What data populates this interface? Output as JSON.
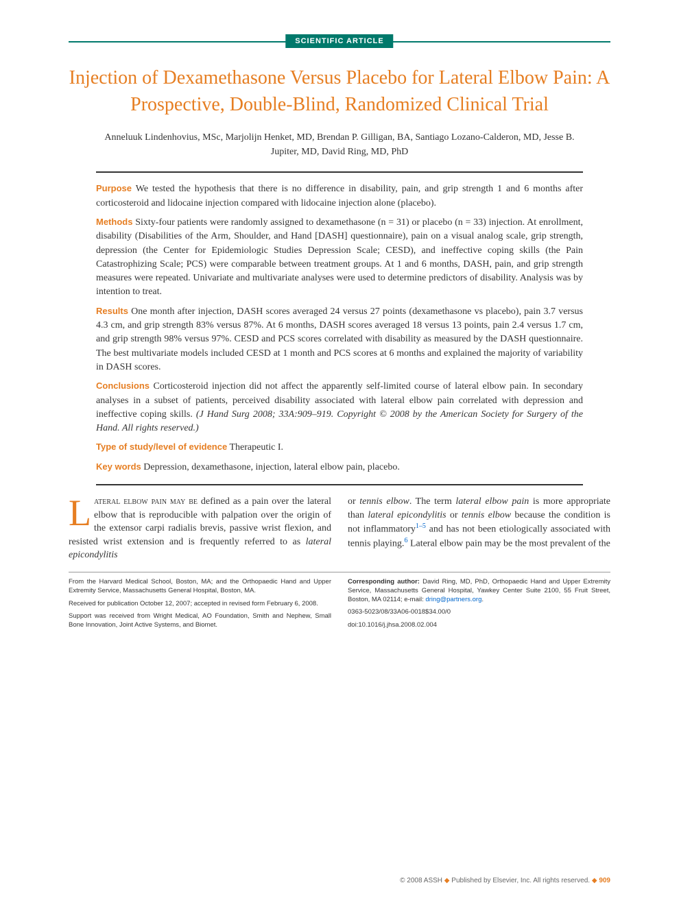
{
  "badge": "SCIENTIFIC ARTICLE",
  "title": "Injection of Dexamethasone Versus Placebo for Lateral Elbow Pain: A Prospective, Double-Blind, Randomized Clinical Trial",
  "authors": "Anneluuk Lindenhovius, MSc, Marjolijn Henket, MD, Brendan P. Gilligan, BA, Santiago Lozano-Calderon, MD, Jesse B. Jupiter, MD, David Ring, MD, PhD",
  "abstract": {
    "purpose_label": "Purpose",
    "purpose": " We tested the hypothesis that there is no difference in disability, pain, and grip strength 1 and 6 months after corticosteroid and lidocaine injection compared with lidocaine injection alone (placebo).",
    "methods_label": "Methods",
    "methods": " Sixty-four patients were randomly assigned to dexamethasone (n = 31) or placebo (n = 33) injection. At enrollment, disability (Disabilities of the Arm, Shoulder, and Hand [DASH] questionnaire), pain on a visual analog scale, grip strength, depression (the Center for Epidemiologic Studies Depression Scale; CESD), and ineffective coping skills (the Pain Catastrophizing Scale; PCS) were comparable between treatment groups. At 1 and 6 months, DASH, pain, and grip strength measures were repeated. Univariate and multivariate analyses were used to determine predictors of disability. Analysis was by intention to treat.",
    "results_label": "Results",
    "results": " One month after injection, DASH scores averaged 24 versus 27 points (dexamethasone vs placebo), pain 3.7 versus 4.3 cm, and grip strength 83% versus 87%. At 6 months, DASH scores averaged 18 versus 13 points, pain 2.4 versus 1.7 cm, and grip strength 98% versus 97%. CESD and PCS scores correlated with disability as measured by the DASH questionnaire. The best multivariate models included CESD at 1 month and PCS scores at 6 months and explained the majority of variability in DASH scores.",
    "conclusions_label": "Conclusions",
    "conclusions": " Corticosteroid injection did not affect the apparently self-limited course of lateral elbow pain. In secondary analyses in a subset of patients, perceived disability associated with lateral elbow pain correlated with depression and ineffective coping skills. ",
    "citation": "(J Hand Surg 2008; 33A:909–919. Copyright © 2008 by the American Society for Surgery of the Hand. All rights reserved.)",
    "type_label": "Type of study/level of evidence",
    "type": " Therapeutic I.",
    "keywords_label": "Key words",
    "keywords": " Depression, dexamethasone, injection, lateral elbow pain, placebo."
  },
  "body": {
    "col1_dropcap": "L",
    "col1_lead": "ateral elbow pain may be",
    "col1_rest": " defined as a pain over the lateral elbow that is reproducible with palpation over the origin of the extensor carpi radialis brevis, passive wrist flexion, and resisted wrist extension and is frequently referred to as ",
    "col1_ital": "lateral epicondylitis",
    "col2_a": "or ",
    "col2_ital1": "tennis elbow",
    "col2_b": ". The term ",
    "col2_ital2": "lateral elbow pain",
    "col2_c": " is more appropriate than ",
    "col2_ital3": "lateral epicondylitis",
    "col2_d": " or ",
    "col2_ital4": "tennis elbow",
    "col2_e": " because the condition is not inflammatory",
    "col2_sup1": "1–5",
    "col2_f": " and has not been etiologically associated with tennis playing.",
    "col2_sup2": "6",
    "col2_g": " Lateral elbow pain may be the most prevalent of the"
  },
  "footer": {
    "left1": "From the Harvard Medical School, Boston, MA; and the Orthopaedic Hand and Upper Extremity Service, Massachusetts General Hospital, Boston, MA.",
    "left2": "Received for publication October 12, 2007; accepted in revised form February 6, 2008.",
    "left3": "Support was received from Wright Medical, AO Foundation, Smith and Nephew, Small Bone Innovation, Joint Active Systems, and Biomet.",
    "right1_label": "Corresponding author:",
    "right1": " David Ring, MD, PhD, Orthopaedic Hand and Upper Extremity Service, Massachusetts General Hospital, Yawkey Center Suite 2100, 55 Fruit Street, Boston, MA 02114; e-mail: ",
    "right1_email": "dring@partners.org",
    "right2": "0363-5023/08/33A06-0018$34.00/0",
    "right3": "doi:10.1016/j.jhsa.2008.02.004"
  },
  "pagefoot": {
    "copyright": "© 2008 ASSH ",
    "diamond": "◆",
    "publisher": " Published by Elsevier, Inc. All rights reserved. ",
    "page": "909"
  },
  "colors": {
    "accent_teal": "#00796b",
    "accent_orange": "#e67e22",
    "link_blue": "#0066cc",
    "text": "#333333",
    "bg": "#ffffff"
  },
  "typography": {
    "title_fontsize": 28,
    "body_fontsize": 14,
    "footer_fontsize": 9.5,
    "dropcap_fontsize": 54
  }
}
